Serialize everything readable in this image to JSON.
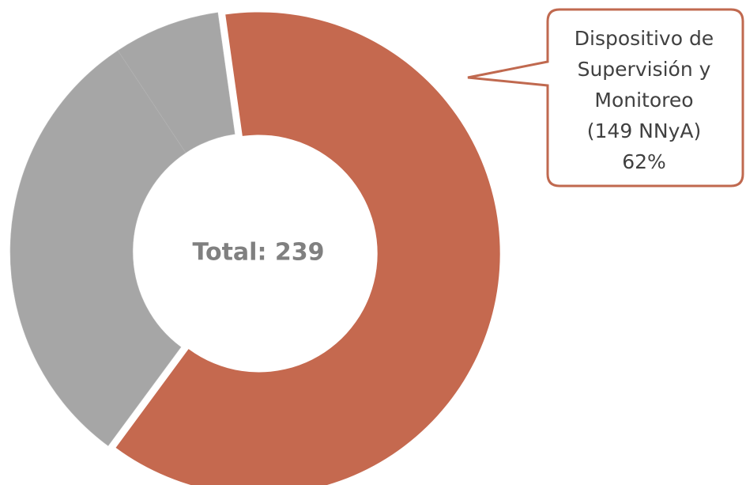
{
  "chart_data": {
    "type": "donut",
    "values": [
      149,
      73,
      17
    ],
    "colors": [
      "#c5694f",
      "#a6a6a6",
      "#a6a6a6"
    ],
    "center_label": "Total: 239",
    "annotation": [
      "Dispositivo de",
      "Supervisión y",
      "Monitoreo",
      "(149 NNyA)",
      "62%"
    ]
  }
}
